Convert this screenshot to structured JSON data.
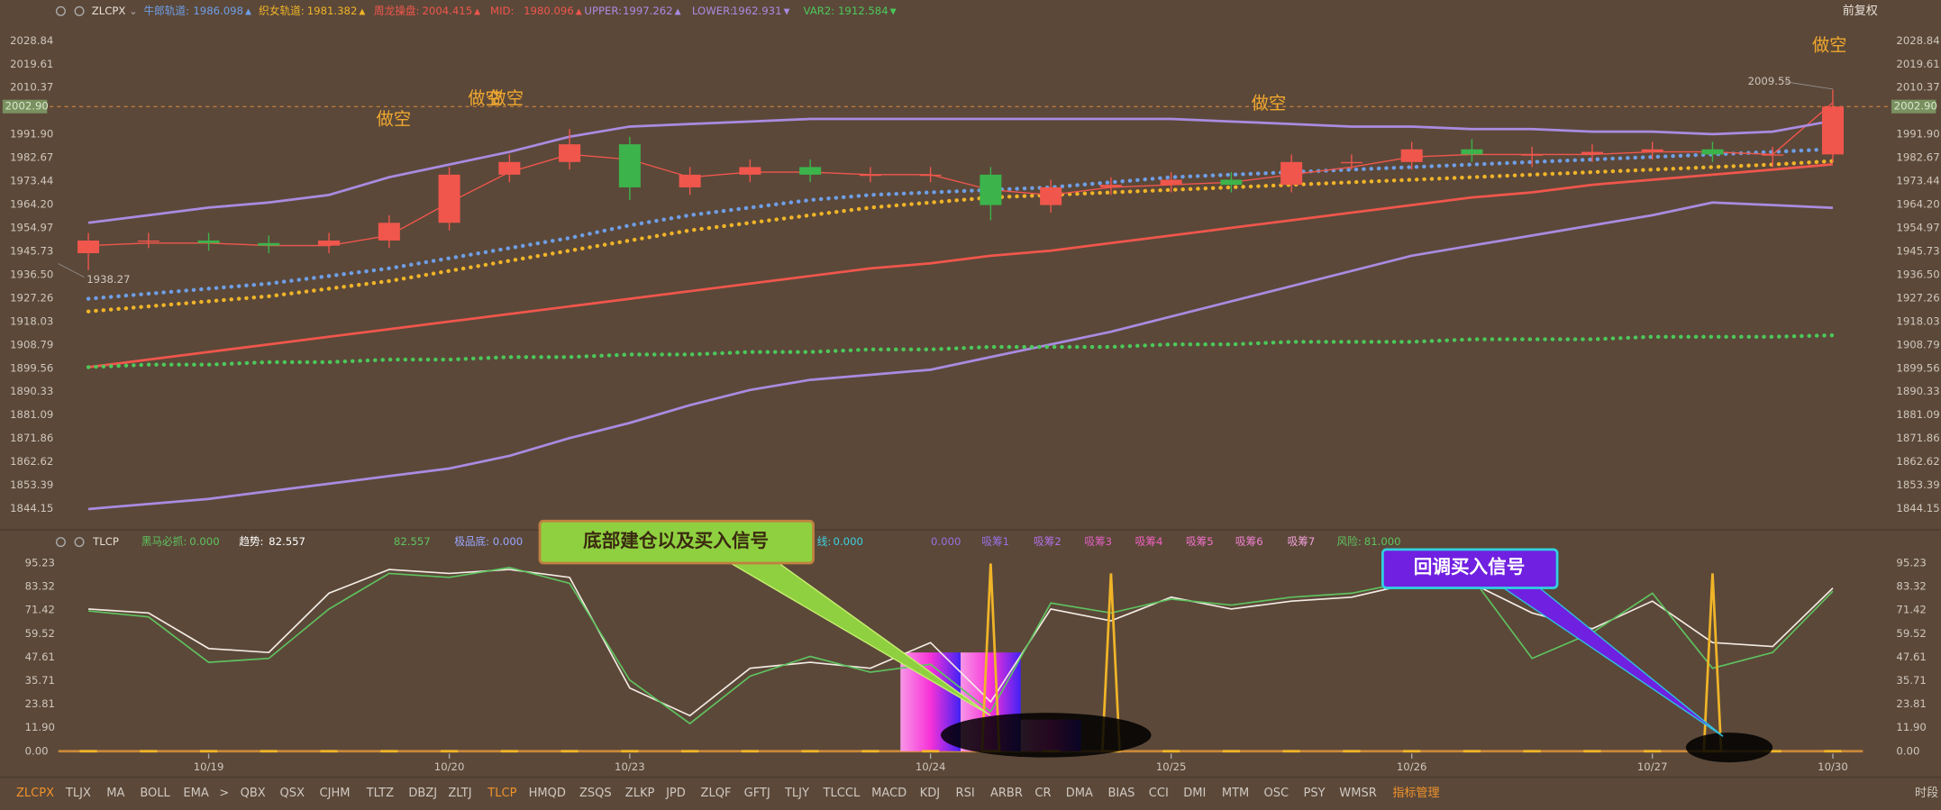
{
  "header": {
    "symbol": "ZLCPX",
    "right": "前复权"
  },
  "sub_header": {
    "symbol": "TLCP",
    "items": [
      {
        "name": "黑马必抓:",
        "value": "0.000",
        "color": "#5fc35f"
      },
      {
        "name": "趋势:",
        "value": "82.557",
        "color": "#ffffff"
      },
      {
        "value": "82.557",
        "color": "#5fc35f"
      },
      {
        "name": "极品底:",
        "value": "0.000",
        "color": "#9aa7ff"
      },
      {
        "name": "线:",
        "value": "0.000",
        "color": "#3fd0e0"
      },
      {
        "value": "0.000",
        "color": "#9a70e0"
      },
      {
        "name": "吸筹1",
        "color": "#9a70e0"
      },
      {
        "name": "吸筹2",
        "color": "#b070e0"
      },
      {
        "name": "吸筹3",
        "color": "#e060c0"
      },
      {
        "name": "吸筹4",
        "color": "#f060c0"
      },
      {
        "name": "吸筹5",
        "color": "#f070c8"
      },
      {
        "name": "吸筹6",
        "color": "#f080d0"
      },
      {
        "name": "吸筹7",
        "color": "#f0a0d8"
      },
      {
        "name": "风险:",
        "value": "81.000",
        "color": "#5fc35f"
      }
    ]
  },
  "callouts": [
    "底部建仓以及买入信号",
    "回调买入信号"
  ],
  "tabs": [
    "ZLCPX",
    "TLJX",
    "MA",
    "BOLL",
    "EMA",
    ">",
    "QBX",
    "QSX",
    "CJHM",
    "TLTZ",
    "DBZJ",
    "ZLTJ",
    "TLCP",
    "HMQD",
    "ZSQS",
    "ZLKP",
    "JPD",
    "ZLQF",
    "GFTJ",
    "TLJY",
    "TLCCL",
    "MACD",
    "KDJ",
    "RSI",
    "ARBR",
    "CR",
    "DMA",
    "BIAS",
    "CCI",
    "DMI",
    "MTM",
    "OSC",
    "PSY",
    "WMSR",
    "指标管理"
  ],
  "active_tabs": [
    "ZLCPX",
    "TLCP",
    "指标管理"
  ],
  "footer_right": "时段",
  "chart_data": [
    {
      "type": "candlestick",
      "categories": [
        null,
        null,
        "10/19",
        null,
        null,
        null,
        "10/20",
        null,
        null,
        "10/23",
        null,
        null,
        null,
        null,
        "10/24",
        null,
        null,
        null,
        "10/25",
        null,
        null,
        null,
        "10/26",
        null,
        null,
        null,
        "10/27",
        null,
        null,
        "10/30"
      ],
      "open": [
        1945,
        1950,
        1950,
        1949,
        1948,
        1950,
        1957,
        1976,
        1981,
        1988,
        1971,
        1976,
        1979,
        1976,
        1976,
        1976,
        1964,
        1971,
        1972,
        1974,
        1972,
        1981,
        1981,
        1986,
        1984,
        1984,
        1985,
        1986,
        1984,
        1984
      ],
      "high": [
        1953,
        1953,
        1953,
        1952,
        1953,
        1960,
        1979,
        1984,
        1994,
        1991,
        1979,
        1982,
        1982,
        1979,
        1979,
        1979,
        1974,
        1975,
        1977,
        1977,
        1984,
        1984,
        1989,
        1990,
        1987,
        1988,
        1989,
        1989,
        1987,
        2009.55
      ],
      "low": [
        1938.27,
        1947,
        1946,
        1945,
        1945,
        1947,
        1954,
        1973,
        1978,
        1966,
        1968,
        1973,
        1973,
        1973,
        1973,
        1958,
        1961,
        1968,
        1969,
        1969,
        1969,
        1978,
        1978,
        1981,
        1979,
        1981,
        1982,
        1981,
        1979,
        1981
      ],
      "close": [
        1950,
        1950,
        1949,
        1948,
        1950,
        1957,
        1976,
        1981,
        1988,
        1971,
        1976,
        1979,
        1976,
        1976,
        1976,
        1964,
        1971,
        1972,
        1974,
        1972,
        1981,
        1981,
        1986,
        1984,
        1984,
        1985,
        1986,
        1984,
        1984,
        2002.9
      ],
      "up_color": "#f0564c",
      "down_color": "#3cb44b",
      "series": [
        {
          "name": "牛郎轨道:",
          "color": "#6f9ee6",
          "style": "dotted",
          "values": [
            1927,
            1929,
            1931,
            1933,
            1936,
            1939,
            1943,
            1947,
            1951,
            1956,
            1960,
            1963,
            1966,
            1968,
            1969,
            1970,
            1971,
            1973,
            1975,
            1976,
            1977,
            1978,
            1979,
            1980,
            1981,
            1982,
            1983,
            1984,
            1985,
            1986.098
          ]
        },
        {
          "name": "织女轨道:",
          "color": "#f0b428",
          "style": "dotted",
          "values": [
            1922,
            1924,
            1926,
            1928,
            1931,
            1934,
            1938,
            1942,
            1946,
            1950,
            1954,
            1957,
            1960,
            1963,
            1965,
            1967,
            1968,
            1969,
            1970,
            1971,
            1972,
            1973,
            1974,
            1975,
            1976,
            1977,
            1978,
            1979,
            1980,
            1981.382
          ]
        },
        {
          "name": "周龙操盘:",
          "color": "#f0564c",
          "style": "solid",
          "values": [
            1948,
            1949,
            1949,
            1948,
            1948,
            1952,
            1965,
            1977,
            1984,
            1982,
            1975,
            1977,
            1977,
            1976,
            1976,
            1970,
            1968,
            1971,
            1972,
            1973,
            1976,
            1979,
            1983,
            1984,
            1984,
            1984,
            1985,
            1985,
            1984,
            2004.415
          ]
        },
        {
          "name": "MID:",
          "color": "#f0564c",
          "style": "solid",
          "values": [
            1900,
            1903,
            1906,
            1909,
            1912,
            1915,
            1918,
            1921,
            1924,
            1927,
            1930,
            1933,
            1936,
            1939,
            1941,
            1944,
            1946,
            1949,
            1952,
            1955,
            1958,
            1961,
            1964,
            1967,
            1969,
            1972,
            1974,
            1976,
            1978,
            1980.096
          ]
        },
        {
          "name": "UPPER:",
          "color": "#a98be0",
          "style": "solid",
          "values": [
            1957,
            1960,
            1963,
            1965,
            1968,
            1975,
            1980,
            1985,
            1991,
            1995,
            1996,
            1997,
            1998,
            1998,
            1998,
            1998,
            1998,
            1998,
            1998,
            1997,
            1996,
            1995,
            1995,
            1994,
            1994,
            1993,
            1993,
            1992,
            1993,
            1997.262
          ]
        },
        {
          "name": "LOWER:",
          "color": "#a98be0",
          "style": "solid",
          "values": [
            1844,
            1846,
            1848,
            1851,
            1854,
            1857,
            1860,
            1865,
            1872,
            1878,
            1885,
            1891,
            1895,
            1897,
            1899,
            1904,
            1909,
            1914,
            1920,
            1926,
            1932,
            1938,
            1944,
            1948,
            1952,
            1956,
            1960,
            1965,
            1964,
            1962.931
          ]
        },
        {
          "name": "VAR2:",
          "color": "#4cc85a",
          "style": "dotted",
          "values": [
            1900,
            1901,
            1901,
            1902,
            1902,
            1903,
            1903,
            1904,
            1904,
            1905,
            1905,
            1906,
            1906,
            1907,
            1907,
            1908,
            1908,
            1908,
            1909,
            1909,
            1910,
            1910,
            1910,
            1911,
            1911,
            1911,
            1912,
            1912,
            1912,
            1912.584
          ]
        }
      ],
      "price_line": {
        "value": 2002.9,
        "label": "2002.90"
      },
      "annotations": [
        "做空",
        "做空",
        "做空",
        "做空",
        "做空"
      ],
      "ylim": [
        1839.75,
        2035.19
      ],
      "yticks": [
        2028.84,
        2019.61,
        2010.37,
        {
          "value": 1991.9,
          "label": "1991.90"
        },
        1982.67,
        1973.44,
        {
          "value": 1964.2,
          "label": "1964.20"
        },
        1954.97,
        1945.73,
        {
          "value": 1936.5,
          "label": "1936.50"
        },
        1927.26,
        1918.03,
        1908.79,
        1899.56,
        1890.33,
        1881.09,
        1871.86,
        1862.62,
        1853.39,
        1844.15
      ],
      "grid": false
    },
    {
      "type": "line",
      "series": [
        {
          "name": "趋势:",
          "color": "#f4ece4",
          "kind": "line",
          "values": [
            72,
            70,
            52,
            50,
            80,
            92,
            90,
            92,
            88,
            32,
            18,
            42,
            45,
            42,
            55,
            25,
            72,
            66,
            78,
            72,
            76,
            78,
            85,
            85,
            70,
            62,
            76,
            55,
            53,
            82.557
          ]
        },
        {
          "name": "风险:",
          "color": "#5fc35f",
          "kind": "line",
          "values": [
            71,
            68,
            45,
            47,
            72,
            90,
            88,
            93,
            85,
            36,
            14,
            38,
            48,
            40,
            44,
            20,
            75,
            70,
            77,
            74,
            78,
            80,
            86,
            88,
            47,
            60,
            80,
            42,
            50,
            81
          ]
        },
        {
          "name": "黑马必抓:",
          "color": "#f0b428",
          "kind": "spike",
          "values": [
            0,
            0,
            0,
            0,
            0,
            0,
            0,
            0,
            0,
            0,
            0,
            0,
            0,
            0,
            0,
            95,
            0,
            90,
            0,
            0,
            0,
            0,
            0,
            0,
            0,
            0,
            0,
            90,
            0,
            0
          ]
        },
        {
          "name": "吸筹1",
          "color": "#ff60e0",
          "kind": "bar",
          "values": [
            0,
            0,
            0,
            0,
            0,
            0,
            0,
            0,
            0,
            0,
            0,
            0,
            0,
            0,
            50,
            50,
            16,
            0,
            0,
            0,
            0,
            0,
            0,
            0,
            0,
            0,
            0,
            0,
            0,
            0
          ]
        }
      ],
      "ylim": [
        0,
        100
      ],
      "yticks": [
        {
          "value": 0,
          "label": "0.00"
        },
        {
          "value": 11.9,
          "label": "11.90"
        },
        23.81,
        35.71,
        47.61,
        59.52,
        71.42,
        83.32,
        95.23
      ],
      "grid": false
    }
  ]
}
